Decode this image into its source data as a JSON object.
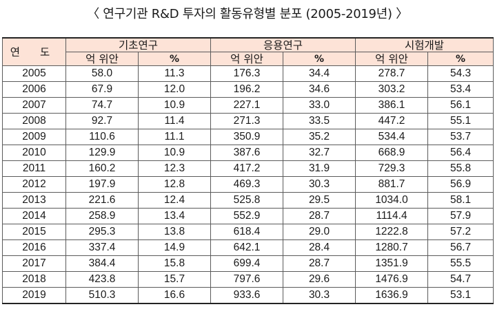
{
  "title": "〈 연구기관 R&D 투자의 활동유형별 분포 (2005-2019년) 〉",
  "table": {
    "year_header": "연 도",
    "groups": [
      "기초연구",
      "응용연구",
      "시험개발"
    ],
    "sub_headers": [
      "억 위안",
      "%",
      "억 위안",
      "%",
      "억 위안",
      "%"
    ],
    "rows": [
      [
        "2005",
        "58.0",
        "11.3",
        "176.3",
        "34.4",
        "278.7",
        "54.3"
      ],
      [
        "2006",
        "67.9",
        "12.0",
        "196.2",
        "34.6",
        "303.2",
        "53.4"
      ],
      [
        "2007",
        "74.7",
        "10.9",
        "227.1",
        "33.0",
        "386.1",
        "56.1"
      ],
      [
        "2008",
        "92.7",
        "11.4",
        "271.3",
        "33.5",
        "447.2",
        "55.1"
      ],
      [
        "2009",
        "110.6",
        "11.1",
        "350.9",
        "35.2",
        "534.4",
        "53.7"
      ],
      [
        "2010",
        "129.9",
        "10.9",
        "387.6",
        "32.7",
        "668.9",
        "56.4"
      ],
      [
        "2011",
        "160.2",
        "12.3",
        "417.2",
        "31.9",
        "729.3",
        "55.8"
      ],
      [
        "2012",
        "197.9",
        "12.8",
        "469.3",
        "30.3",
        "881.7",
        "56.9"
      ],
      [
        "2013",
        "221.6",
        "12.4",
        "525.8",
        "29.5",
        "1034.0",
        "58.1"
      ],
      [
        "2014",
        "258.9",
        "13.4",
        "552.9",
        "28.7",
        "1114.4",
        "57.9"
      ],
      [
        "2015",
        "295.3",
        "13.8",
        "618.4",
        "29.0",
        "1222.8",
        "57.2"
      ],
      [
        "2016",
        "337.4",
        "14.9",
        "642.1",
        "28.4",
        "1280.7",
        "56.7"
      ],
      [
        "2017",
        "384.4",
        "15.8",
        "699.4",
        "28.7",
        "1351.9",
        "55.5"
      ],
      [
        "2018",
        "423.8",
        "15.7",
        "797.6",
        "29.6",
        "1476.9",
        "54.7"
      ],
      [
        "2019",
        "510.3",
        "16.6",
        "933.6",
        "30.3",
        "1636.9",
        "53.1"
      ]
    ]
  }
}
